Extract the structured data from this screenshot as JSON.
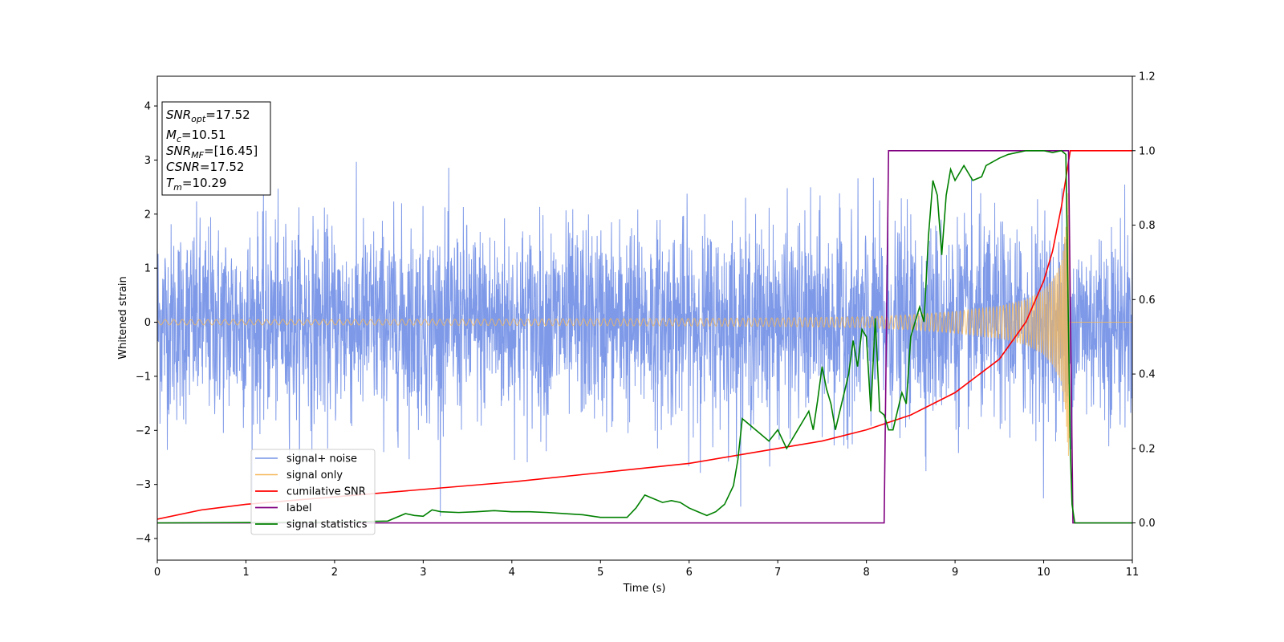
{
  "chart_data": {
    "type": "line",
    "xlabel": "Time (s)",
    "ylabel": "Whitened strain",
    "xlim": [
      0,
      11
    ],
    "ylim_left": [
      -4.4,
      4.55
    ],
    "ylim_right": [
      -0.1,
      1.2
    ],
    "x_ticks": [
      "0",
      "1",
      "2",
      "3",
      "4",
      "5",
      "6",
      "7",
      "8",
      "9",
      "10",
      "11"
    ],
    "y_ticks_left": [
      "−4",
      "−3",
      "−2",
      "−1",
      "0",
      "1",
      "2",
      "3",
      "4"
    ],
    "y_ticks_right": [
      "0.0",
      "0.2",
      "0.4",
      "0.6",
      "0.8",
      "1.0",
      "1.2"
    ],
    "annotation": [
      {
        "sym": "SNR",
        "sub": "opt",
        "val": "=17.52"
      },
      {
        "sym": "M",
        "sub": "c",
        "val": "=10.51"
      },
      {
        "sym": "SNR",
        "sub": "MF",
        "val": "=[16.45]"
      },
      {
        "sym": "CSNR",
        "sub": "",
        "val": "=17.52"
      },
      {
        "sym": "T",
        "sub": "m",
        "val": "=10.29"
      }
    ],
    "legend_position": "lower-left",
    "series": [
      {
        "name": "signal+ noise",
        "axis": "left",
        "color": "#7793e7",
        "description": "whitened strain, noise amplitude approx between -3 and 4.2, x from 0 to 11"
      },
      {
        "name": "signal only",
        "axis": "left",
        "color": "#f5b85a",
        "envelope": {
          "x": [
            0,
            2,
            4,
            6,
            7,
            8,
            8.5,
            9,
            9.5,
            9.8,
            10,
            10.1,
            10.2,
            10.25,
            10.29,
            10.3,
            11
          ],
          "amp": [
            0.05,
            0.05,
            0.06,
            0.07,
            0.08,
            0.1,
            0.14,
            0.2,
            0.3,
            0.42,
            0.6,
            0.8,
            1.1,
            1.8,
            2.8,
            0,
            0
          ]
        }
      },
      {
        "name": "cumilative SNR",
        "axis": "right",
        "color": "#ff0000",
        "x": [
          0,
          0.5,
          1,
          2,
          3,
          4,
          5,
          6,
          7,
          7.5,
          8,
          8.5,
          9,
          9.5,
          9.8,
          10,
          10.1,
          10.2,
          10.3,
          11
        ],
        "y": [
          0.01,
          0.035,
          0.05,
          0.07,
          0.09,
          0.11,
          0.135,
          0.16,
          0.2,
          0.22,
          0.25,
          0.29,
          0.35,
          0.44,
          0.54,
          0.65,
          0.73,
          0.85,
          1.0,
          1.0
        ]
      },
      {
        "name": "label",
        "axis": "right",
        "color": "#800080",
        "x": [
          0,
          8.2,
          8.25,
          10.28,
          10.33,
          11
        ],
        "y": [
          0,
          0,
          1,
          1,
          0,
          0
        ]
      },
      {
        "name": "signal statistics",
        "axis": "right",
        "color": "#008000",
        "x": [
          0,
          1,
          2,
          2.6,
          2.8,
          2.9,
          3.0,
          3.1,
          3.2,
          3.4,
          3.6,
          3.8,
          4.0,
          4.2,
          4.4,
          4.6,
          4.8,
          5.0,
          5.3,
          5.4,
          5.5,
          5.6,
          5.7,
          5.8,
          5.9,
          6.0,
          6.1,
          6.2,
          6.3,
          6.4,
          6.5,
          6.55,
          6.6,
          6.7,
          6.8,
          6.9,
          7.0,
          7.1,
          7.2,
          7.3,
          7.35,
          7.4,
          7.45,
          7.5,
          7.55,
          7.6,
          7.65,
          7.7,
          7.8,
          7.85,
          7.9,
          7.95,
          8.0,
          8.05,
          8.1,
          8.15,
          8.2,
          8.25,
          8.3,
          8.4,
          8.45,
          8.5,
          8.6,
          8.65,
          8.7,
          8.75,
          8.8,
          8.85,
          8.9,
          8.95,
          9.0,
          9.1,
          9.15,
          9.2,
          9.3,
          9.35,
          9.5,
          9.6,
          9.7,
          9.8,
          9.9,
          10.0,
          10.1,
          10.2,
          10.25,
          10.3,
          10.32,
          10.35,
          10.4,
          11
        ],
        "y": [
          0,
          0.001,
          0.002,
          0.005,
          0.025,
          0.02,
          0.018,
          0.035,
          0.03,
          0.028,
          0.03,
          0.033,
          0.03,
          0.03,
          0.028,
          0.025,
          0.022,
          0.015,
          0.015,
          0.04,
          0.075,
          0.065,
          0.055,
          0.06,
          0.055,
          0.04,
          0.03,
          0.02,
          0.03,
          0.05,
          0.1,
          0.17,
          0.28,
          0.26,
          0.24,
          0.22,
          0.25,
          0.2,
          0.24,
          0.28,
          0.3,
          0.25,
          0.33,
          0.42,
          0.36,
          0.32,
          0.25,
          0.3,
          0.4,
          0.49,
          0.42,
          0.52,
          0.5,
          0.3,
          0.55,
          0.3,
          0.29,
          0.25,
          0.25,
          0.35,
          0.32,
          0.5,
          0.58,
          0.54,
          0.77,
          0.92,
          0.88,
          0.72,
          0.88,
          0.95,
          0.92,
          0.96,
          0.94,
          0.92,
          0.93,
          0.96,
          0.98,
          0.99,
          0.995,
          1.0,
          1.0,
          1.0,
          0.995,
          1.0,
          0.99,
          0.2,
          0.05,
          0.0,
          0.0,
          0.0
        ]
      }
    ]
  }
}
